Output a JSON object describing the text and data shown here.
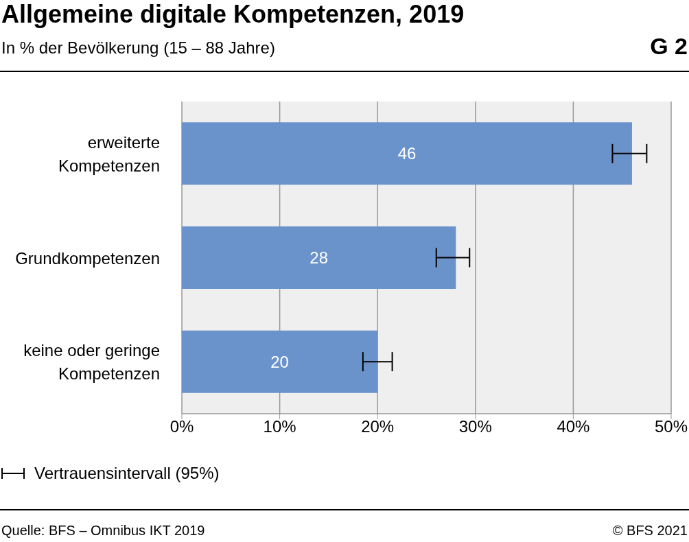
{
  "chart_data": {
    "type": "bar",
    "orientation": "horizontal",
    "title": "Allgemeine digitale Kompetenzen, 2019",
    "subtitle": "In % der Bevölkerung (15 – 88 Jahre)",
    "categories": [
      "erweiterte Kompetenzen",
      "Grundkompetenzen",
      "keine oder geringe Kompetenzen"
    ],
    "values": [
      46,
      28,
      20
    ],
    "color": "#6a93cc",
    "data_labels": true,
    "errors": [
      [
        44.0,
        47.5
      ],
      [
        26.0,
        29.4
      ],
      [
        18.5,
        21.5
      ]
    ],
    "xlim": [
      0,
      50
    ],
    "xticks": [
      {
        "value": 0,
        "label": "0%"
      },
      {
        "value": 10,
        "label": "10%"
      },
      {
        "value": 20,
        "label": "20%"
      },
      {
        "value": 30,
        "label": "30%"
      },
      {
        "value": 40,
        "label": "40%"
      },
      {
        "value": 50,
        "label": "50%"
      }
    ],
    "grid": "x",
    "annotations": [
      "G 2",
      "Vertrauensintervall (95%)",
      "Quelle: BFS – Omnibus IKT 2019",
      "© BFS 2021"
    ]
  }
}
